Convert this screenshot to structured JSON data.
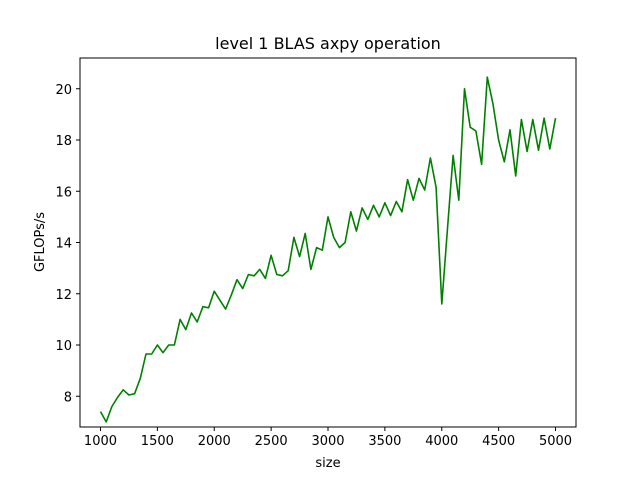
{
  "chart_data": {
    "type": "line",
    "title": "level 1 BLAS axpy operation",
    "xlabel": "size",
    "ylabel": "GFLOPs/s",
    "xlim": [
      820,
      5180
    ],
    "ylim": [
      6.8,
      21.2
    ],
    "xticks": [
      1000,
      1500,
      2000,
      2500,
      3000,
      3500,
      4000,
      4500,
      5000
    ],
    "yticks": [
      8,
      10,
      12,
      14,
      16,
      18,
      20
    ],
    "grid": false,
    "legend": "none",
    "series": [
      {
        "color": "#008000",
        "x": [
          1000,
          1050,
          1100,
          1150,
          1200,
          1250,
          1300,
          1350,
          1400,
          1450,
          1500,
          1550,
          1600,
          1650,
          1700,
          1750,
          1800,
          1850,
          1900,
          1950,
          2000,
          2050,
          2100,
          2150,
          2200,
          2250,
          2300,
          2350,
          2400,
          2450,
          2500,
          2550,
          2600,
          2650,
          2700,
          2750,
          2800,
          2850,
          2900,
          2950,
          3000,
          3050,
          3100,
          3150,
          3200,
          3250,
          3300,
          3350,
          3400,
          3450,
          3500,
          3550,
          3600,
          3650,
          3700,
          3750,
          3800,
          3850,
          3900,
          3950,
          4000,
          4050,
          4100,
          4150,
          4200,
          4250,
          4300,
          4350,
          4400,
          4450,
          4500,
          4550,
          4600,
          4650,
          4700,
          4750,
          4800,
          4850,
          4900,
          4950,
          5000
        ],
        "y": [
          7.4,
          7.0,
          7.6,
          7.95,
          8.25,
          8.05,
          8.1,
          8.7,
          9.65,
          9.65,
          10.0,
          9.7,
          10.0,
          10.0,
          11.0,
          10.6,
          11.25,
          10.9,
          11.5,
          11.45,
          12.1,
          11.75,
          11.4,
          11.95,
          12.55,
          12.2,
          12.75,
          12.7,
          12.95,
          12.6,
          13.5,
          12.75,
          12.7,
          12.9,
          14.2,
          13.45,
          14.35,
          12.95,
          13.8,
          13.7,
          15.0,
          14.2,
          13.8,
          14.0,
          15.2,
          14.45,
          15.35,
          14.9,
          15.45,
          15.0,
          15.55,
          15.05,
          15.6,
          15.2,
          16.45,
          15.65,
          16.5,
          16.05,
          17.3,
          16.15,
          11.6,
          14.5,
          17.4,
          15.65,
          20.0,
          18.5,
          18.35,
          17.05,
          20.45,
          19.4,
          18.0,
          17.15,
          18.4,
          16.6,
          18.8,
          17.55,
          18.8,
          17.6,
          18.85,
          17.65,
          18.85
        ]
      }
    ]
  }
}
